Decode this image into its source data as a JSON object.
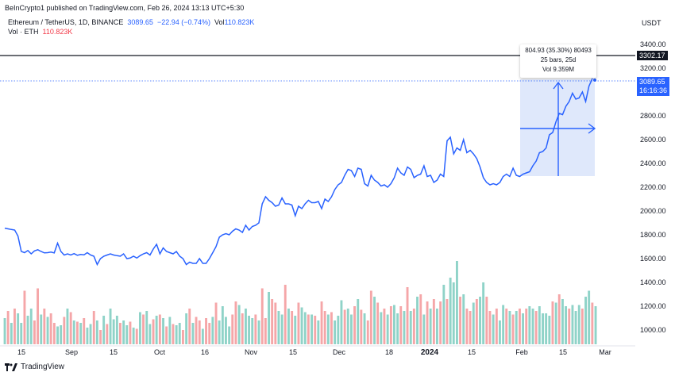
{
  "header": {
    "publisher": "BeInCrypto1 published on TradingView.com, Feb 26, 2024 13:13 UTC+5:30",
    "symbol": "Ethereum / TetherUS, 1D, BINANCE",
    "last_price": "3089.65",
    "change": "−22.94 (−0.74%)",
    "vol_label": "Vol",
    "vol_value": "110.823K",
    "vol_series_label": "Vol · ETH",
    "vol_series_value": "110.823K"
  },
  "axis": {
    "currency": "USDT",
    "y_ticks": [
      "3400.00",
      "3200.00",
      "3000.00",
      "2800.00",
      "2600.00",
      "2400.00",
      "2200.00",
      "2000.00",
      "1800.00",
      "1600.00",
      "1400.00",
      "1200.00",
      "1000.00"
    ],
    "x_ticks": [
      "15",
      "Sep",
      "15",
      "Oct",
      "16",
      "Nov",
      "15",
      "Dec",
      "18",
      "2024",
      "15",
      "Feb",
      "15",
      "Mar"
    ]
  },
  "price_tags": {
    "resistance": "3302.17",
    "current": "3089.65",
    "countdown": "16:16:36"
  },
  "measure": {
    "line1": "804.93 (35.30%) 80493",
    "line2": "25 bars, 25d",
    "line3": "Vol 9.359M"
  },
  "footer": {
    "brand": "TradingView"
  },
  "colors": {
    "line": "#2962ff",
    "vol_up": "#8fd3c8",
    "vol_down": "#f5a6a8",
    "measure_fill": "#dbe5fb",
    "measure_line": "#2962ff"
  },
  "chart_data": {
    "type": "line",
    "title": "Ethereum / TetherUS, 1D, BINANCE",
    "ylabel": "USDT",
    "ylim": [
      950,
      3500
    ],
    "resistance_level": 3302.17,
    "current_price": 3089.65,
    "price": [
      1856,
      1850,
      1845,
      1840,
      1790,
      1660,
      1650,
      1668,
      1640,
      1665,
      1675,
      1660,
      1648,
      1650,
      1655,
      1648,
      1730,
      1660,
      1630,
      1640,
      1630,
      1642,
      1628,
      1635,
      1632,
      1650,
      1630,
      1620,
      1550,
      1600,
      1620,
      1630,
      1640,
      1630,
      1625,
      1620,
      1640,
      1600,
      1605,
      1620,
      1605,
      1625,
      1640,
      1650,
      1630,
      1680,
      1720,
      1640,
      1690,
      1660,
      1650,
      1640,
      1660,
      1620,
      1600,
      1550,
      1570,
      1560,
      1560,
      1600,
      1560,
      1560,
      1600,
      1650,
      1700,
      1780,
      1800,
      1810,
      1800,
      1830,
      1850,
      1840,
      1820,
      1880,
      1840,
      1870,
      1880,
      1900,
      2060,
      2120,
      2090,
      2070,
      2040,
      2050,
      2110,
      2060,
      2060,
      2050,
      1960,
      2040,
      2020,
      2060,
      2090,
      2070,
      2070,
      2080,
      2020,
      2100,
      2080,
      2120,
      2180,
      2220,
      2240,
      2300,
      2350,
      2340,
      2290,
      2360,
      2350,
      2230,
      2210,
      2300,
      2260,
      2240,
      2210,
      2220,
      2200,
      2230,
      2280,
      2360,
      2320,
      2300,
      2370,
      2350,
      2280,
      2300,
      2310,
      2380,
      2290,
      2300,
      2240,
      2260,
      2310,
      2290,
      2590,
      2620,
      2480,
      2530,
      2510,
      2600,
      2490,
      2510,
      2480,
      2440,
      2370,
      2280,
      2240,
      2220,
      2230,
      2220,
      2240,
      2290,
      2310,
      2290,
      2360,
      2300,
      2290,
      2310,
      2320,
      2330,
      2380,
      2420,
      2490,
      2500,
      2530,
      2640,
      2660,
      2750,
      2820,
      2810,
      2880,
      2920,
      2990,
      2940,
      2950,
      3000,
      2920,
      3050,
      3110,
      3090
    ],
    "volume_k": [
      22,
      28,
      18,
      30,
      26,
      18,
      45,
      24,
      30,
      20,
      47,
      25,
      30,
      23,
      26,
      18,
      15,
      16,
      23,
      30,
      27,
      20,
      19,
      18,
      22,
      14,
      17,
      28,
      20,
      12,
      24,
      17,
      30,
      21,
      24,
      18,
      20,
      16,
      19,
      14,
      13,
      27,
      25,
      28,
      17,
      21,
      24,
      25,
      22,
      15,
      23,
      17,
      16,
      18,
      12,
      26,
      30,
      18,
      23,
      20,
      13,
      22,
      18,
      23,
      35,
      20,
      32,
      23,
      15,
      25,
      36,
      33,
      26,
      30,
      24,
      22,
      25,
      20,
      47,
      22,
      44,
      38,
      35,
      28,
      25,
      50,
      30,
      28,
      24,
      35,
      31,
      27,
      25,
      25,
      24,
      20,
      36,
      28,
      25,
      27,
      20,
      24,
      37,
      29,
      30,
      25,
      32,
      38,
      29,
      26,
      20,
      45,
      40,
      35,
      27,
      30,
      25,
      32,
      33,
      26,
      32,
      28,
      48,
      28,
      30,
      40,
      42,
      25,
      36,
      30,
      38,
      30,
      36,
      50,
      38,
      56,
      52,
      70,
      40,
      42,
      30,
      28,
      35,
      38,
      40,
      52,
      40,
      28,
      25,
      30,
      20,
      33,
      30,
      28,
      25,
      28,
      30,
      26,
      30,
      32,
      30,
      28,
      32,
      26,
      26,
      24,
      36,
      35,
      42,
      38,
      32,
      30,
      33,
      28,
      33,
      30,
      40,
      45,
      35,
      32
    ],
    "volume_dir": [
      1,
      0,
      1,
      0,
      1,
      1,
      0,
      1,
      1,
      0,
      0,
      1,
      0,
      1,
      0,
      0,
      1,
      1,
      0,
      1,
      0,
      1,
      0,
      1,
      0,
      1,
      1,
      0,
      1,
      0,
      1,
      0,
      1,
      1,
      1,
      0,
      1,
      1,
      0,
      1,
      0,
      1,
      0,
      1,
      1,
      0,
      1,
      0,
      1,
      0,
      1,
      0,
      1,
      1,
      0,
      1,
      0,
      1,
      0,
      0,
      1,
      0,
      0,
      1,
      0,
      1,
      1,
      1,
      1,
      0,
      0,
      1,
      0,
      1,
      1,
      1,
      0,
      1,
      0,
      0,
      1,
      0,
      0,
      1,
      1,
      0,
      1,
      0,
      1,
      0,
      1,
      1,
      0,
      1,
      0,
      1,
      0,
      0,
      1,
      0,
      1,
      1,
      1,
      0,
      1,
      1,
      0,
      1,
      0,
      1,
      0,
      0,
      1,
      0,
      1,
      0,
      1,
      0,
      1,
      1,
      0,
      1,
      0,
      1,
      0,
      1,
      0,
      1,
      0,
      1,
      0,
      1,
      0,
      1,
      0,
      1,
      1,
      1,
      0,
      1,
      0,
      0,
      1,
      0,
      1,
      1,
      0,
      0,
      1,
      0,
      1,
      1,
      0,
      1,
      0,
      1,
      0,
      1,
      0,
      1,
      1,
      0,
      1,
      1,
      1,
      1,
      0,
      1,
      0,
      1,
      1,
      0,
      1,
      1,
      1,
      0,
      1,
      1,
      0,
      1
    ]
  }
}
